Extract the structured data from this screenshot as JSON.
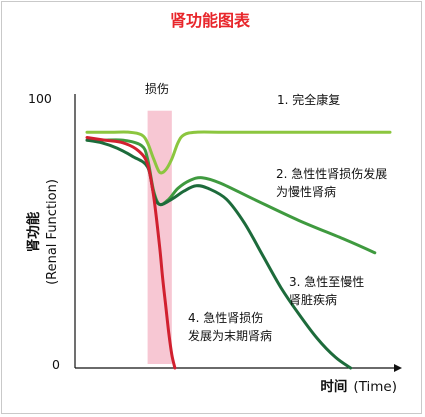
{
  "chart_data": {
    "type": "line",
    "title": "肾功能图表",
    "ylabel": "肾功能",
    "ylabel_en": "(Renal Function)",
    "xlabel": "时间",
    "xlabel_en": "(Time)",
    "yticks": [
      "100",
      "0"
    ],
    "ylim": [
      0,
      100
    ],
    "xlim": [
      0,
      100
    ],
    "grid": false,
    "legend": "none",
    "shaded_region": {
      "label": "损伤",
      "x_start": 20,
      "x_end": 28,
      "color": "#f7c7d3"
    },
    "series": [
      {
        "name": "1. 完全康复",
        "color": "#8cc63f",
        "x": [
          0,
          8,
          14,
          18,
          20,
          22,
          24,
          26,
          28,
          30,
          32,
          36,
          45,
          60,
          80,
          100
        ],
        "y": [
          88,
          88,
          88,
          87,
          84,
          78,
          73,
          74,
          78,
          84,
          87,
          88,
          88,
          88,
          88,
          88
        ]
      },
      {
        "name": "2. 急性肾损伤发展为慢性肾病",
        "color": "#3f9a3f",
        "x": [
          0,
          5,
          12,
          18,
          20,
          22,
          24,
          27,
          30,
          34,
          38,
          44,
          55,
          70,
          85,
          95
        ],
        "y": [
          85,
          85,
          85,
          83,
          78,
          66,
          61,
          63,
          67,
          70,
          71,
          69,
          63,
          55,
          48,
          43
        ]
      },
      {
        "name": "3. 急性至慢性肾脏疾病",
        "color": "#1d6b3b",
        "x": [
          0,
          5,
          10,
          15,
          20,
          22,
          24,
          28,
          32,
          36,
          40,
          46,
          52,
          58,
          64,
          70,
          76,
          82,
          87
        ],
        "y": [
          85,
          84,
          82,
          79,
          75,
          65,
          61,
          63,
          66,
          68,
          67,
          63,
          54,
          42,
          30,
          20,
          11,
          4,
          0
        ]
      },
      {
        "name": "4. 急性肾损伤发展为末期肾病",
        "color": "#d1202f",
        "x": [
          0,
          6,
          12,
          17,
          20,
          22,
          24,
          25,
          26,
          27,
          28,
          29
        ],
        "y": [
          86,
          85,
          84,
          81,
          76,
          64,
          45,
          33,
          23,
          13,
          5,
          0
        ]
      }
    ]
  },
  "annotations": {
    "a1": [
      "1. 完全康复"
    ],
    "a2": [
      "2. 急性性肾损伤发展",
      "为慢性肾病"
    ],
    "a3": [
      "3. 急性至慢性",
      "肾脏疾病"
    ],
    "a4": [
      "4. 急性肾损伤",
      "发展为末期肾病"
    ]
  }
}
